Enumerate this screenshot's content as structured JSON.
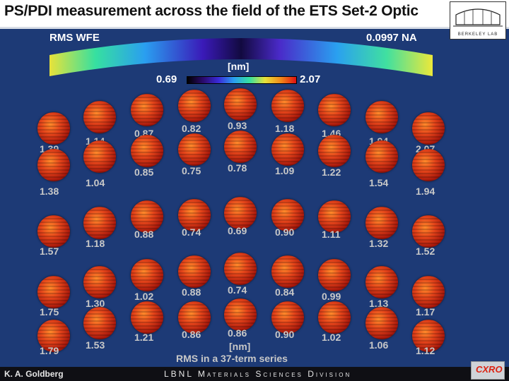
{
  "slide": {
    "title": "PS/PDI measurement across the field of the ETS Set-2 Optic",
    "logo_text": "BERKELEY LAB",
    "rms_wfe_label": "RMS WFE",
    "na_label": "0.0997 NA",
    "colorbar": {
      "unit": "[nm]",
      "min": "0.69",
      "max": "2.07"
    },
    "bottom_caption": {
      "unit": "[nm]",
      "series": "RMS in a 37-term series"
    },
    "footer": {
      "author": "K. A. Goldberg",
      "division": "LBNL Materials Sciences Division",
      "badge": "CXRO"
    },
    "columns": [
      {
        "values": [
          "1.39",
          "1.38",
          "1.57",
          "1.75",
          "1.79"
        ]
      },
      {
        "values": [
          "1.14",
          "1.04",
          "1.18",
          "1.30",
          "1.53"
        ]
      },
      {
        "values": [
          "0.87",
          "0.85",
          "0.88",
          "1.02",
          "1.21"
        ]
      },
      {
        "values": [
          "0.82",
          "0.75",
          "0.74",
          "0.88",
          "0.86"
        ]
      },
      {
        "values": [
          "0.93",
          "0.78",
          "0.69",
          "0.74",
          "0.86"
        ]
      },
      {
        "values": [
          "1.18",
          "1.09",
          "0.90",
          "0.84",
          "0.90"
        ]
      },
      {
        "values": [
          "1.46",
          "1.22",
          "1.11",
          "0.99",
          "1.02"
        ]
      },
      {
        "values": [
          "1.94",
          "1.54",
          "1.32",
          "1.13",
          "1.06"
        ]
      },
      {
        "values": [
          "2.07",
          "1.94",
          "1.52",
          "1.17",
          "1.12"
        ]
      }
    ]
  },
  "colors": {
    "background": "#1d3a76",
    "sphere_core": "#e4441a",
    "value_text": "#c8c8c8"
  }
}
